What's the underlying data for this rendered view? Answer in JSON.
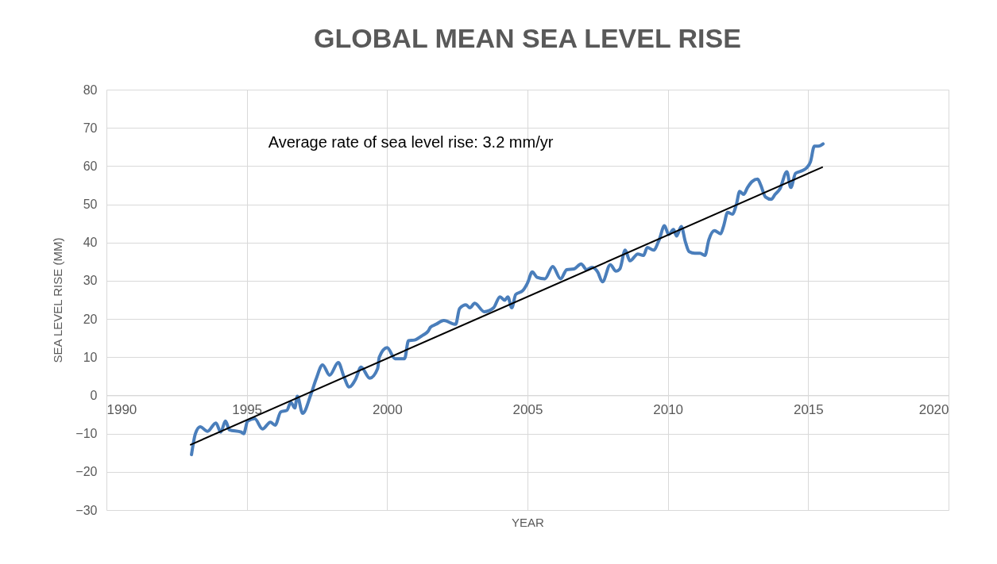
{
  "chart_data": {
    "type": "line",
    "title": "GLOBAL MEAN SEA LEVEL RISE",
    "xlabel": "YEAR",
    "ylabel": "SEA LEVEL RISE (MM)",
    "xlim": [
      1990,
      2020
    ],
    "xticks": [
      1990,
      1995,
      2000,
      2005,
      2010,
      2015,
      2020
    ],
    "ylim": [
      -30,
      80
    ],
    "yticks": [
      -30,
      -20,
      -10,
      0,
      10,
      20,
      30,
      40,
      50,
      60,
      70,
      80
    ],
    "grid": true,
    "annotations": [
      "Average rate of sea level rise: 3.2 mm/yr"
    ],
    "series": [
      {
        "color": "#4a7ebb",
        "x": [
          1993.03,
          1993.17,
          1993.34,
          1993.6,
          1993.9,
          1994.07,
          1994.24,
          1994.38,
          1994.8,
          1994.89,
          1995.03,
          1995.28,
          1995.56,
          1995.84,
          1996.01,
          1996.21,
          1996.43,
          1996.57,
          1996.71,
          1996.8,
          1996.99,
          1997.28,
          1997.47,
          1997.7,
          1997.95,
          1998.26,
          1998.46,
          1998.65,
          1998.88,
          1999.07,
          1999.38,
          1999.66,
          1999.72,
          2000.0,
          2000.28,
          2000.62,
          2000.76,
          2000.98,
          2001.26,
          2001.46,
          2001.54,
          2001.74,
          2002.02,
          2002.44,
          2002.58,
          2002.81,
          2002.95,
          2003.12,
          2003.46,
          2003.79,
          2004.02,
          2004.19,
          2004.3,
          2004.44,
          2004.58,
          2004.83,
          2005.0,
          2005.17,
          2005.34,
          2005.62,
          2005.9,
          2006.18,
          2006.4,
          2006.66,
          2006.91,
          2007.11,
          2007.3,
          2007.5,
          2007.67,
          2007.95,
          2008.15,
          2008.29,
          2008.48,
          2008.65,
          2008.93,
          2009.13,
          2009.27,
          2009.49,
          2009.69,
          2009.88,
          2010.03,
          2010.2,
          2010.31,
          2010.48,
          2010.62,
          2010.76,
          2010.96,
          2011.15,
          2011.32,
          2011.46,
          2011.66,
          2011.88,
          2011.99,
          2012.13,
          2012.3,
          2012.44,
          2012.56,
          2012.7,
          2012.84,
          2013.01,
          2013.2,
          2013.31,
          2013.48,
          2013.68,
          2013.82,
          2013.99,
          2014.24,
          2014.38,
          2014.55,
          2014.75,
          2014.94,
          2015.08,
          2015.22,
          2015.36,
          2015.53
        ],
        "values": [
          -15.5,
          -10,
          -8.2,
          -9.4,
          -7.2,
          -9.6,
          -6.7,
          -9,
          -9.6,
          -10,
          -6.7,
          -6.1,
          -8.8,
          -7,
          -7.8,
          -4.3,
          -3.9,
          -1.8,
          -3.3,
          -0.2,
          -4.7,
          0.2,
          4.3,
          8,
          5.3,
          8.6,
          4.9,
          2.2,
          4.3,
          7.4,
          4.5,
          7,
          10,
          12.5,
          9.6,
          9.6,
          14.3,
          14.5,
          15.7,
          16.8,
          17.8,
          18.6,
          19.6,
          18.6,
          22.7,
          23.7,
          22.9,
          24.1,
          21.9,
          22.9,
          25.8,
          24.9,
          25.8,
          22.9,
          26.4,
          27.4,
          29.4,
          32.3,
          30.9,
          30.5,
          33.7,
          30.5,
          32.9,
          33.1,
          34.4,
          32.9,
          33.5,
          32.3,
          29.7,
          34.2,
          32.5,
          33.1,
          38,
          35.2,
          37,
          36.6,
          38.7,
          38,
          40.7,
          44.4,
          42.1,
          43.4,
          41.7,
          44.2,
          40.3,
          37.6,
          37.2,
          37.2,
          36.6,
          40.7,
          43.1,
          42.3,
          44.4,
          47.9,
          47.4,
          49.9,
          53.4,
          52.6,
          54.4,
          56,
          56.6,
          55,
          51.9,
          51.3,
          52.6,
          54,
          58.5,
          54.4,
          58.1,
          58.7,
          59.5,
          61.1,
          65.2,
          65.2,
          65.8
        ]
      },
      {
        "type": "line",
        "color": "#000000",
        "x": [
          1993,
          2015.5
        ],
        "values": [
          -12.9,
          59.7
        ]
      }
    ]
  }
}
